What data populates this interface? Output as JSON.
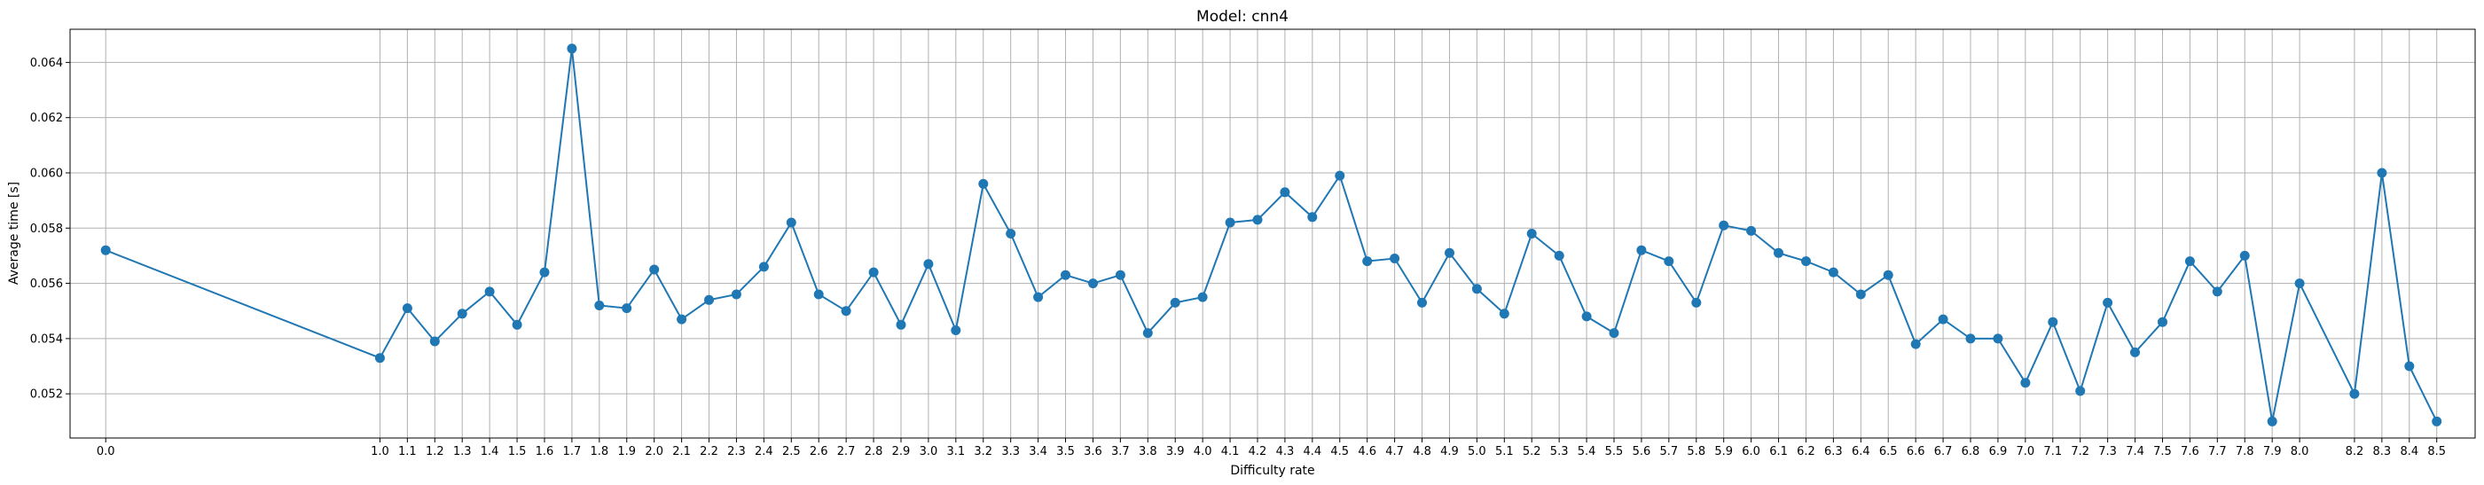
{
  "chart_data": {
    "type": "line",
    "title": "Model: cnn4",
    "xlabel": "Difficulty rate",
    "ylabel": "Average time [s]",
    "xlim": [
      -0.13,
      8.64
    ],
    "ylim": [
      0.0504,
      0.0652
    ],
    "grid": true,
    "marker": "circle",
    "color": "#1f77b4",
    "x_ticks": [
      "0.0",
      "1.0",
      "1.1",
      "1.2",
      "1.3",
      "1.4",
      "1.5",
      "1.6",
      "1.7",
      "1.8",
      "1.9",
      "2.0",
      "2.1",
      "2.2",
      "2.3",
      "2.4",
      "2.5",
      "2.6",
      "2.7",
      "2.8",
      "2.9",
      "3.0",
      "3.1",
      "3.2",
      "3.3",
      "3.4",
      "3.5",
      "3.6",
      "3.7",
      "3.8",
      "3.9",
      "4.0",
      "4.1",
      "4.2",
      "4.3",
      "4.4",
      "4.5",
      "4.6",
      "4.7",
      "4.8",
      "4.9",
      "5.0",
      "5.1",
      "5.2",
      "5.3",
      "5.4",
      "5.5",
      "5.6",
      "5.7",
      "5.8",
      "5.9",
      "6.0",
      "6.1",
      "6.2",
      "6.3",
      "6.4",
      "6.5",
      "6.6",
      "6.7",
      "6.8",
      "6.9",
      "7.0",
      "7.1",
      "7.2",
      "7.3",
      "7.4",
      "7.5",
      "7.6",
      "7.7",
      "7.8",
      "7.9",
      "8.0",
      "8.2",
      "8.3",
      "8.4",
      "8.5"
    ],
    "y_ticks": [
      "0.052",
      "0.054",
      "0.056",
      "0.058",
      "0.060",
      "0.062",
      "0.064"
    ],
    "x": [
      0.0,
      1.0,
      1.1,
      1.2,
      1.3,
      1.4,
      1.5,
      1.6,
      1.7,
      1.8,
      1.9,
      2.0,
      2.1,
      2.2,
      2.3,
      2.4,
      2.5,
      2.6,
      2.7,
      2.8,
      2.9,
      3.0,
      3.1,
      3.2,
      3.3,
      3.4,
      3.5,
      3.6,
      3.7,
      3.8,
      3.9,
      4.0,
      4.1,
      4.2,
      4.3,
      4.4,
      4.5,
      4.6,
      4.7,
      4.8,
      4.9,
      5.0,
      5.1,
      5.2,
      5.3,
      5.4,
      5.5,
      5.6,
      5.7,
      5.8,
      5.9,
      6.0,
      6.1,
      6.2,
      6.3,
      6.4,
      6.5,
      6.6,
      6.7,
      6.8,
      6.9,
      7.0,
      7.1,
      7.2,
      7.3,
      7.4,
      7.5,
      7.6,
      7.7,
      7.8,
      7.9,
      8.0,
      8.2,
      8.3,
      8.4,
      8.5
    ],
    "y": [
      0.0572,
      0.0533,
      0.0551,
      0.0539,
      0.0549,
      0.0557,
      0.0545,
      0.0564,
      0.0645,
      0.0552,
      0.0551,
      0.0565,
      0.0547,
      0.0554,
      0.0556,
      0.0566,
      0.0582,
      0.0556,
      0.055,
      0.0564,
      0.0545,
      0.0567,
      0.0543,
      0.0596,
      0.0578,
      0.0555,
      0.0563,
      0.056,
      0.0563,
      0.0542,
      0.0553,
      0.0555,
      0.0582,
      0.0583,
      0.0593,
      0.0584,
      0.0599,
      0.0568,
      0.0569,
      0.0553,
      0.0571,
      0.0558,
      0.0549,
      0.0578,
      0.057,
      0.0548,
      0.0542,
      0.0572,
      0.0568,
      0.0553,
      0.0581,
      0.0579,
      0.0571,
      0.0568,
      0.0564,
      0.0556,
      0.0563,
      0.0538,
      0.0547,
      0.054,
      0.054,
      0.0524,
      0.0546,
      0.0521,
      0.0553,
      0.0535,
      0.0546,
      0.0568,
      0.0557,
      0.057,
      0.051,
      0.056,
      0.052,
      0.06,
      0.053,
      0.051
    ]
  }
}
